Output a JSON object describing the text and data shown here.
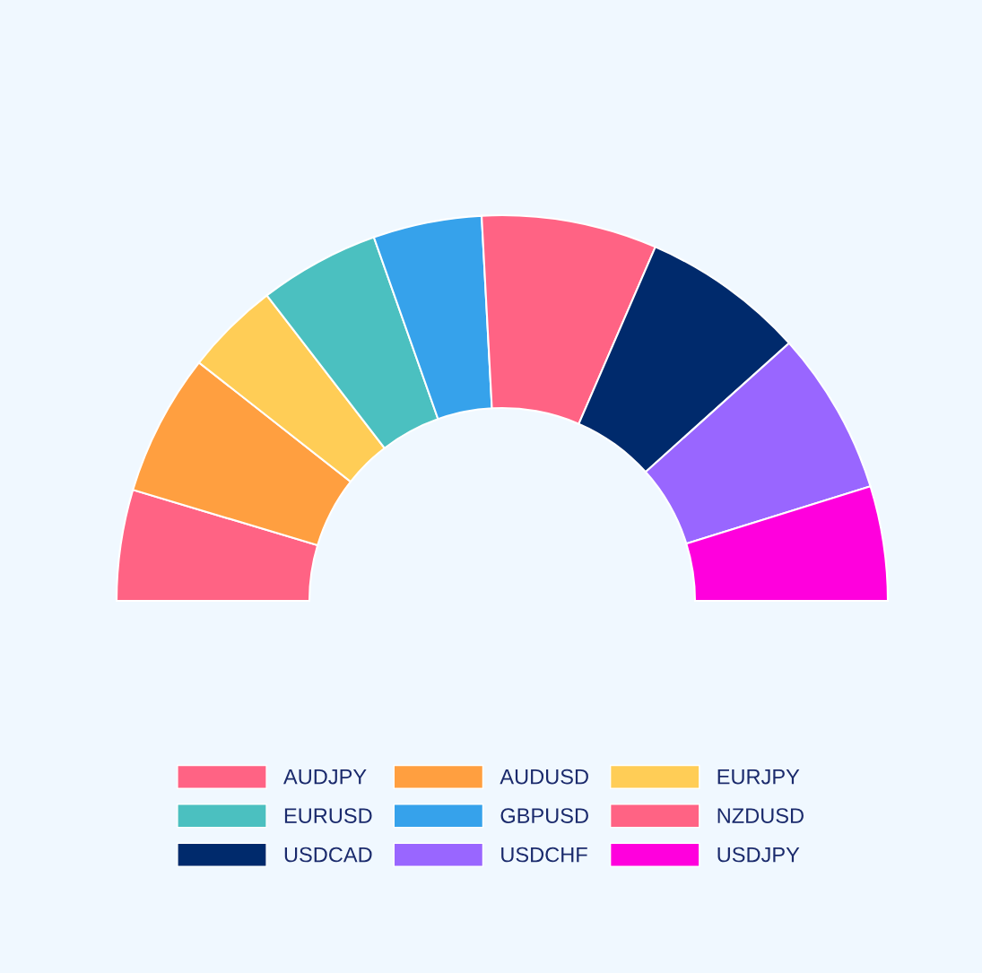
{
  "chart_data": {
    "type": "donut",
    "categories": [
      "AUDJPY",
      "AUDUSD",
      "EURJPY",
      "EURUSD",
      "GBPUSD",
      "NZDUSD",
      "USDCAD",
      "USDCHF",
      "USDJPY"
    ],
    "values": [
      9.3,
      11.9,
      7.9,
      10.1,
      9.1,
      14.7,
      13.7,
      13.7,
      9.6
    ],
    "colors": [
      "#ff6384",
      "#ff9f40",
      "#ffcd56",
      "#4bc0c0",
      "#36a2eb",
      "#ff6384",
      "#002a6c",
      "#9966ff",
      "#ff00dd"
    ],
    "legend": "bottom"
  }
}
